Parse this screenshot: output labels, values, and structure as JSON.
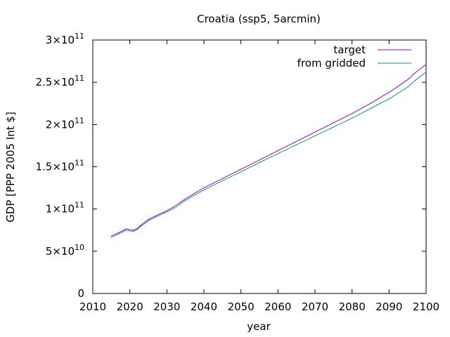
{
  "chart_data": {
    "type": "line",
    "title": "Croatia (ssp5, 5arcmin)",
    "xlabel": "year",
    "ylabel": "GDP [PPP 2005 Int $]",
    "xlim": [
      2010,
      2100
    ],
    "ylim": [
      0,
      300000000000
    ],
    "x_ticks": [
      2010,
      2020,
      2030,
      2040,
      2050,
      2060,
      2070,
      2080,
      2090,
      2100
    ],
    "y_ticks": [
      {
        "value": 0,
        "mantissa": "0",
        "exponent": ""
      },
      {
        "value": 50000000000,
        "mantissa": "5×10",
        "exponent": "10"
      },
      {
        "value": 100000000000,
        "mantissa": "1×10",
        "exponent": "11"
      },
      {
        "value": 150000000000,
        "mantissa": "1.5×10",
        "exponent": "11"
      },
      {
        "value": 200000000000,
        "mantissa": "2×10",
        "exponent": "11"
      },
      {
        "value": 250000000000,
        "mantissa": "2.5×10",
        "exponent": "11"
      },
      {
        "value": 300000000000,
        "mantissa": "3×10",
        "exponent": "11"
      }
    ],
    "grid": false,
    "legend_position": "top-right",
    "series": [
      {
        "name": "target",
        "color": "#9400d3",
        "x": [
          2015,
          2017,
          2019,
          2020,
          2021,
          2022,
          2023,
          2025,
          2027,
          2029,
          2030,
          2032,
          2035,
          2040,
          2045,
          2050,
          2055,
          2060,
          2065,
          2070,
          2075,
          2080,
          2085,
          2088,
          2090,
          2092,
          2095,
          2097,
          2100
        ],
        "values": [
          68000000000,
          72000000000,
          76500000000,
          75500000000,
          75000000000,
          77000000000,
          81000000000,
          87500000000,
          92000000000,
          96000000000,
          98000000000,
          103000000000,
          112000000000,
          125000000000,
          136000000000,
          147000000000,
          158000000000,
          169000000000,
          180000000000,
          191000000000,
          202000000000,
          213000000000,
          225000000000,
          233000000000,
          238000000000,
          244000000000,
          253000000000,
          261000000000,
          271000000000
        ]
      },
      {
        "name": "from gridded",
        "color": "#009e73",
        "x": [
          2015,
          2017,
          2019,
          2020,
          2021,
          2022,
          2023,
          2025,
          2027,
          2029,
          2030,
          2032,
          2035,
          2040,
          2045,
          2050,
          2055,
          2060,
          2065,
          2070,
          2075,
          2080,
          2085,
          2088,
          2090,
          2092,
          2095,
          2097,
          2100
        ],
        "values": [
          66500000000,
          70500000000,
          75000000000,
          74000000000,
          73500000000,
          75500000000,
          79500000000,
          86000000000,
          90500000000,
          94500000000,
          96500000000,
          101000000000,
          110000000000,
          122500000000,
          133500000000,
          144000000000,
          155000000000,
          165500000000,
          176000000000,
          186500000000,
          197000000000,
          207500000000,
          219000000000,
          226000000000,
          230000000000,
          236000000000,
          244000000000,
          252000000000,
          262000000000
        ]
      }
    ]
  }
}
